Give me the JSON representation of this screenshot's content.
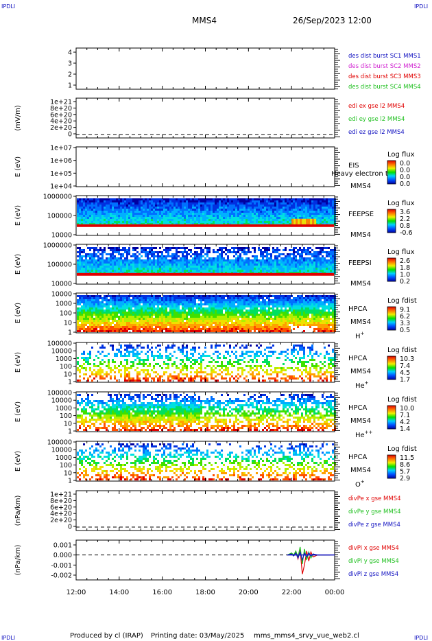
{
  "header": {
    "corner_left_top": "IPDLI",
    "corner_right_top": "IPDLI",
    "corner_left_bottom": "IPDLI",
    "corner_right_bottom": "IPDLI",
    "title": "MMS4",
    "datetime": "26/Sep/2023 12:00"
  },
  "footer": {
    "produced_by": "Produced by cl (IRAP)",
    "printing_date": "Printing date: 03/May/2025",
    "script_name": "mms_mms4_srvy_vue_web2.cl"
  },
  "colors": {
    "blue": "#1010c0",
    "magenta": "#d020d0",
    "red": "#e00000",
    "green": "#20c020"
  },
  "chart_data": [
    {
      "type": "line",
      "ylabel": "",
      "y_ticks": [
        "4",
        "3",
        "2",
        "1"
      ],
      "ylim": [
        0.5,
        4.5
      ],
      "legend": [
        {
          "text": "des dist burst SC1 MMS1",
          "color": "#1010c0"
        },
        {
          "text": "des dist burst SC2 MMS2",
          "color": "#d020d0"
        },
        {
          "text": "des dist burst SC3 MMS3",
          "color": "#e00000"
        },
        {
          "text": "des dist burst SC4 MMS4",
          "color": "#20c020"
        }
      ]
    },
    {
      "type": "line",
      "ylabel": "(mV/m)",
      "y_ticks": [
        "1e+21",
        "8e+20",
        "6e+20",
        "4e+20",
        "2e+20",
        "0"
      ],
      "ylim": [
        0,
        1e+21
      ],
      "zero_line": true,
      "legend": [
        {
          "text": "edi ex gse l2 MMS4",
          "color": "#e00000"
        },
        {
          "text": "edi ey gse l2 MMS4",
          "color": "#20c020"
        },
        {
          "text": "edi ez gse l2 MMS4",
          "color": "#1010c0"
        }
      ]
    },
    {
      "type": "heatmap",
      "ylabel": "E (eV)",
      "y_ticks": [
        "1e+07",
        "1e+06",
        "1e+05",
        "1e+04"
      ],
      "ylim": [
        10000,
        10000000
      ],
      "yscale": "log",
      "side_labels": [
        "EIS",
        "MMS4"
      ],
      "overlay_text": "Heavy electron to",
      "colorbar_title": "Log flux",
      "colorbar_ticks": [
        "0.0",
        "0.0",
        "0.0",
        "0.0"
      ]
    },
    {
      "type": "heatmap",
      "ylabel": "E (eV)",
      "y_ticks": [
        "1000000",
        "100000",
        "10000"
      ],
      "ylim": [
        10000,
        1000000
      ],
      "yscale": "log",
      "side_labels": [
        "FEEPSE",
        "MMS4"
      ],
      "colorbar_title": "Log flux",
      "colorbar_ticks": [
        "3.6",
        "2.2",
        "0.8",
        "-0.6"
      ]
    },
    {
      "type": "heatmap",
      "ylabel": "E (eV)",
      "y_ticks": [
        "1000000",
        "100000",
        "10000"
      ],
      "ylim": [
        10000,
        1000000
      ],
      "yscale": "log",
      "side_labels": [
        "FEEPSI",
        "MMS4"
      ],
      "colorbar_title": "Log flux",
      "colorbar_ticks": [
        "2.6",
        "1.8",
        "1.0",
        "0.2"
      ]
    },
    {
      "type": "heatmap",
      "ylabel": "E (eV)",
      "y_ticks": [
        "10000",
        "1000",
        "100",
        "10",
        "1"
      ],
      "ylim": [
        1,
        40000
      ],
      "yscale": "log",
      "side_labels": [
        "HPCA",
        "MMS4"
      ],
      "species": "H",
      "species_sup": "+",
      "colorbar_title": "Log fdist",
      "colorbar_ticks": [
        "9.1",
        "6.2",
        "3.3",
        "0.5"
      ]
    },
    {
      "type": "heatmap",
      "ylabel": "E (eV)",
      "y_ticks": [
        "100000",
        "10000",
        "1000",
        "100",
        "10",
        "1"
      ],
      "ylim": [
        1,
        100000
      ],
      "yscale": "log",
      "side_labels": [
        "HPCA",
        "MMS4"
      ],
      "species": "He",
      "species_sup": "+",
      "colorbar_title": "Log fdist",
      "colorbar_ticks": [
        "10.3",
        "7.4",
        "4.5",
        "1.7"
      ]
    },
    {
      "type": "heatmap",
      "ylabel": "E (eV)",
      "y_ticks": [
        "100000",
        "10000",
        "1000",
        "100",
        "10",
        "1"
      ],
      "ylim": [
        1,
        100000
      ],
      "yscale": "log",
      "side_labels": [
        "HPCA",
        "MMS4"
      ],
      "species": "He",
      "species_sup": "++",
      "colorbar_title": "Log fdist",
      "colorbar_ticks": [
        "10.0",
        "7.1",
        "4.2",
        "1.4"
      ]
    },
    {
      "type": "heatmap",
      "ylabel": "E (eV)",
      "y_ticks": [
        "100000",
        "10000",
        "1000",
        "100",
        "10",
        "1"
      ],
      "ylim": [
        1,
        100000
      ],
      "yscale": "log",
      "side_labels": [
        "HPCA",
        "MMS4"
      ],
      "species": "O",
      "species_sup": "+",
      "colorbar_title": "Log fdist",
      "colorbar_ticks": [
        "11.5",
        "8.6",
        "5.7",
        "2.9"
      ]
    },
    {
      "type": "line",
      "ylabel": "(nPa/km)",
      "y_ticks": [
        "1e+21",
        "8e+20",
        "6e+20",
        "4e+20",
        "2e+20",
        "0"
      ],
      "ylim": [
        0,
        1e+21
      ],
      "zero_line": true,
      "legend": [
        {
          "text": "divPe x gse MMS4",
          "color": "#e00000"
        },
        {
          "text": "divPe y gse MMS4",
          "color": "#20c020"
        },
        {
          "text": "divPe z gse MMS4",
          "color": "#1010c0"
        }
      ]
    },
    {
      "type": "line",
      "ylabel": "(nPa/km)",
      "y_ticks": [
        "0.001",
        "0.000",
        "-0.001",
        "-0.002"
      ],
      "ylim": [
        -0.0024,
        0.0014
      ],
      "zero_line": true,
      "legend": [
        {
          "text": "divPi x gse MMS4",
          "color": "#e00000"
        },
        {
          "text": "divPi y gse MMS4",
          "color": "#20c020"
        },
        {
          "text": "divPi z gse MMS4",
          "color": "#1010c0"
        }
      ],
      "series": [
        {
          "name": "divPi x gse MMS4",
          "color": "#e00000",
          "x": [
            21.8,
            22.0,
            22.1,
            22.2,
            22.3,
            22.4,
            22.5,
            22.6,
            22.7,
            22.8,
            22.9,
            23.0,
            23.2,
            23.5,
            23.8
          ],
          "y": [
            0.0,
            0.0001,
            0.0,
            0.0003,
            -0.0004,
            0.0005,
            -0.0019,
            -0.001,
            0.0004,
            -0.0006,
            0.0003,
            -0.0002,
            0.0,
            0.0,
            0.0
          ]
        },
        {
          "name": "divPi y gse MMS4",
          "color": "#20c020",
          "x": [
            21.8,
            22.0,
            22.1,
            22.2,
            22.3,
            22.4,
            22.5,
            22.6,
            22.7,
            22.8,
            22.9,
            23.0,
            23.2,
            23.5,
            23.8
          ],
          "y": [
            0.0,
            0.0002,
            0.0,
            0.0004,
            -0.0002,
            0.0008,
            -0.0009,
            0.0006,
            -0.0005,
            0.0003,
            -0.0003,
            0.0001,
            0.0,
            0.0,
            0.0
          ]
        },
        {
          "name": "divPi z gse MMS4",
          "color": "#1010c0",
          "x": [
            21.8,
            22.0,
            22.1,
            22.2,
            22.3,
            22.4,
            22.5,
            22.6,
            22.7,
            22.8,
            22.9,
            23.0,
            23.2,
            23.5,
            23.8
          ],
          "y": [
            0.0,
            0.0001,
            -0.0001,
            0.0002,
            -0.0003,
            0.0003,
            -0.0005,
            0.0002,
            -0.0002,
            0.0002,
            -0.0001,
            0.0001,
            0.0,
            0.0,
            0.0
          ]
        }
      ]
    }
  ],
  "x_axis": {
    "tick_labels": [
      "12:00",
      "14:00",
      "16:00",
      "18:00",
      "20:00",
      "22:00",
      "00:00"
    ],
    "tick_hours": [
      12,
      14,
      16,
      18,
      20,
      22,
      24
    ],
    "xlim": [
      12,
      24
    ]
  }
}
